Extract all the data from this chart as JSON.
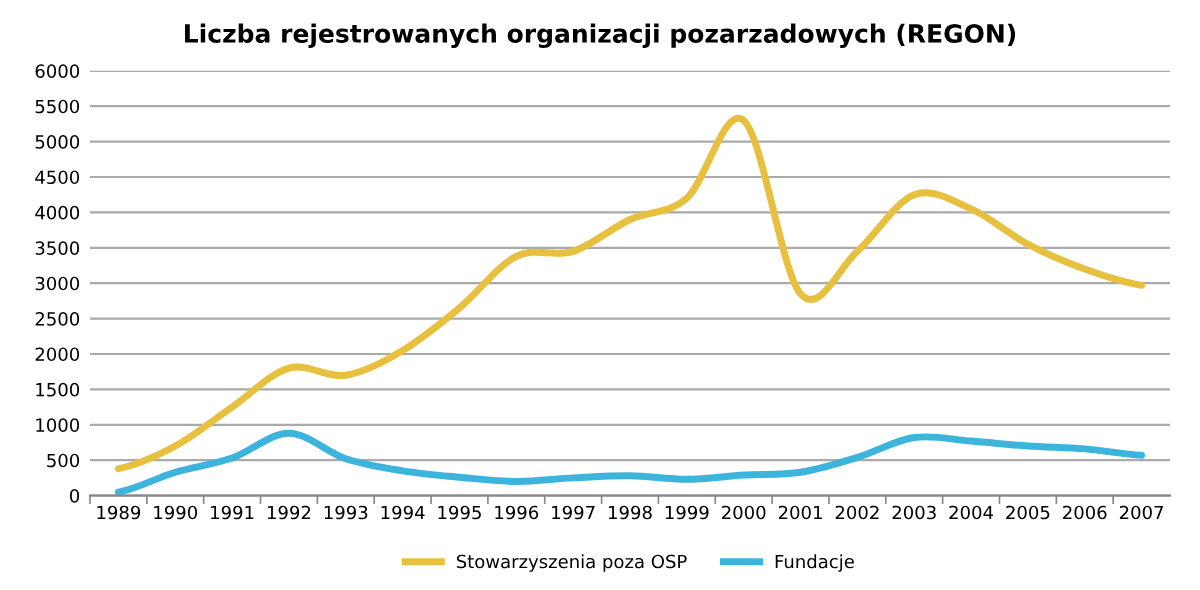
{
  "chart_data": {
    "type": "line",
    "title": "Liczba rejestrowanych organizacji pozarzadowych (REGON)",
    "categories": [
      "1989",
      "1990",
      "1991",
      "1992",
      "1993",
      "1994",
      "1995",
      "1996",
      "1997",
      "1998",
      "1999",
      "2000",
      "2001",
      "2002",
      "2003",
      "2004",
      "2005",
      "2006",
      "2007"
    ],
    "series": [
      {
        "name": "Stowarzyszenia poza OSP",
        "color": "#e8c040",
        "values": [
          380,
          700,
          1250,
          1800,
          1700,
          2050,
          2650,
          3380,
          3450,
          3900,
          4200,
          5300,
          2850,
          3450,
          4250,
          4050,
          3550,
          3200,
          2970
        ]
      },
      {
        "name": "Fundacje",
        "color": "#3cb4dc",
        "values": [
          50,
          330,
          530,
          880,
          520,
          350,
          260,
          200,
          250,
          280,
          230,
          290,
          330,
          540,
          820,
          770,
          700,
          660,
          570
        ]
      }
    ],
    "ylim": [
      0,
      6000
    ],
    "yticks": [
      0,
      500,
      1000,
      1500,
      2000,
      2500,
      3000,
      3500,
      4000,
      4500,
      5000,
      5500,
      6000
    ],
    "grid": "y",
    "legend": "bottom",
    "marker": "none",
    "line_style": "solid"
  }
}
